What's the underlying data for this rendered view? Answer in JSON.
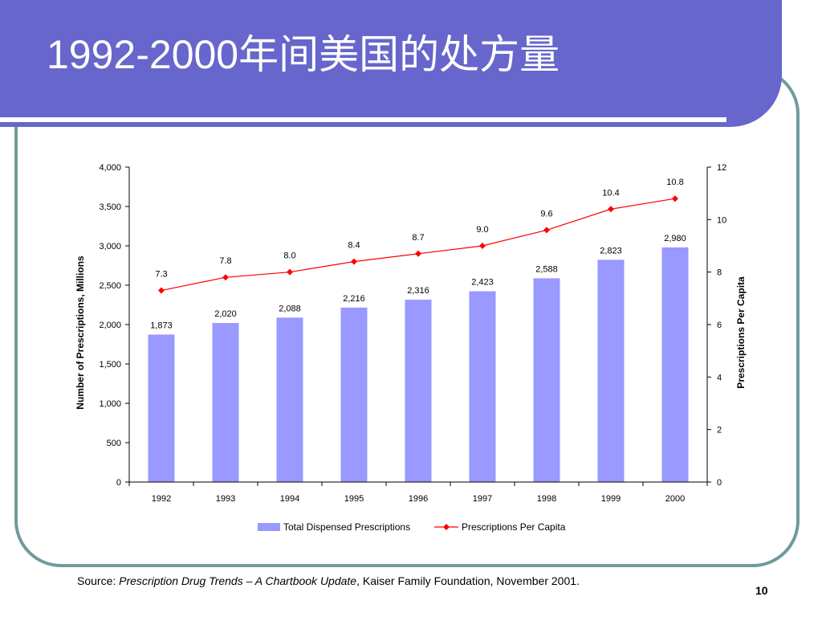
{
  "slide": {
    "title": "1992-2000年间美国的处方量",
    "source_prefix": "Source: ",
    "source_title": "Prescription Drug Trends – A Chartbook Update",
    "source_rest": ", Kaiser Family Foundation, November 2001.",
    "page_number": "10"
  },
  "colors": {
    "title_band": "#6666cc",
    "frame": "#6f9c9c",
    "bar": "#9999ff",
    "line": "#ff0000"
  },
  "chart_data": {
    "type": "bar",
    "categories": [
      "1992",
      "1993",
      "1994",
      "1995",
      "1996",
      "1997",
      "1998",
      "1999",
      "2000"
    ],
    "series": [
      {
        "name": "Total Dispensed Prescriptions",
        "kind": "bar",
        "axis": "left",
        "values": [
          1873,
          2020,
          2088,
          2216,
          2316,
          2423,
          2588,
          2823,
          2980
        ],
        "labels": [
          "1,873",
          "2,020",
          "2,088",
          "2,216",
          "2,316",
          "2,423",
          "2,588",
          "2,823",
          "2,980"
        ]
      },
      {
        "name": "Prescriptions Per Capita",
        "kind": "line",
        "axis": "right",
        "values": [
          7.3,
          7.8,
          8.0,
          8.4,
          8.7,
          9.0,
          9.6,
          10.4,
          10.8
        ],
        "labels": [
          "7.3",
          "7.8",
          "8.0",
          "8.4",
          "8.7",
          "9.0",
          "9.6",
          "10.4",
          "10.8"
        ]
      }
    ],
    "ylabel": "Number of Prescriptions, Millions",
    "y2label": "Prescriptions Per Capita",
    "ylim": [
      0,
      4000
    ],
    "y2lim": [
      0,
      12
    ],
    "yticks": [
      "0",
      "500",
      "1,000",
      "1,500",
      "2,000",
      "2,500",
      "3,000",
      "3,500",
      "4,000"
    ],
    "y2ticks": [
      "0",
      "2",
      "4",
      "6",
      "8",
      "10",
      "12"
    ],
    "legend": "bottom",
    "grid": false
  }
}
